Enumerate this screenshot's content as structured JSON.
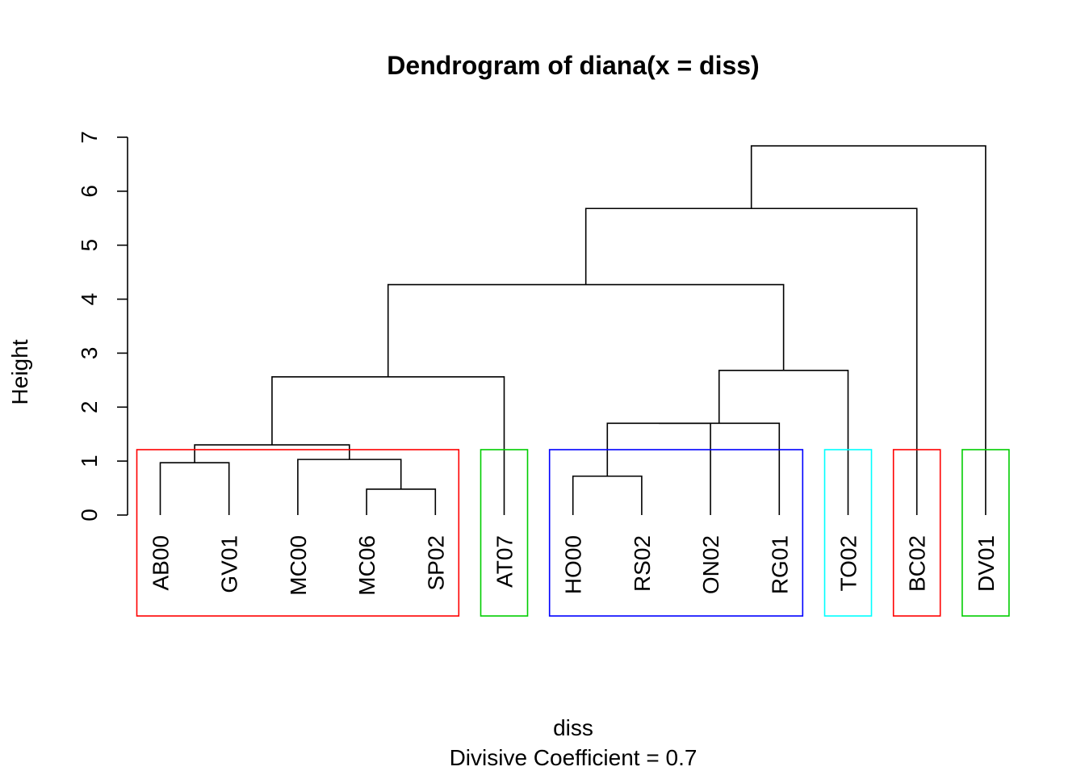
{
  "chart_data": {
    "type": "dendrogram",
    "title": "Dendrogram of  diana(x = diss)",
    "xlabel": "diss",
    "sublabel": "Divisive Coefficient =  0.7",
    "ylabel": "Height",
    "ylim": [
      0,
      7
    ],
    "yticks": [
      0,
      1,
      2,
      3,
      4,
      5,
      6,
      7
    ],
    "leaves": [
      "AB00",
      "GV01",
      "MC00",
      "MC06",
      "SP02",
      "AT07",
      "HO00",
      "RS02",
      "ON02",
      "RG01",
      "TO02",
      "BC02",
      "DV01"
    ],
    "merges": [
      {
        "id": "m1",
        "left": "MC06",
        "right": "SP02",
        "height": 0.48
      },
      {
        "id": "m2",
        "left": "HO00",
        "right": "RS02",
        "height": 0.72
      },
      {
        "id": "m3",
        "left": "AB00",
        "right": "GV01",
        "height": 0.97
      },
      {
        "id": "m4",
        "left": "MC00",
        "right": "m1",
        "height": 1.03
      },
      {
        "id": "m5",
        "left": "m3",
        "right": "m4",
        "height": 1.3
      },
      {
        "id": "m6",
        "left": "m2",
        "right": "ON02",
        "height": 1.7
      },
      {
        "id": "m7",
        "left": "m6",
        "right": "RG01",
        "height": 1.7
      },
      {
        "id": "m8",
        "left": "m5",
        "right": "AT07",
        "height": 2.56
      },
      {
        "id": "m9",
        "left": "m7",
        "right": "TO02",
        "height": 2.68
      },
      {
        "id": "m10",
        "left": "m8",
        "right": "m9",
        "height": 4.27
      },
      {
        "id": "m11",
        "left": "m10",
        "right": "BC02",
        "height": 5.68
      },
      {
        "id": "m12",
        "left": "m11",
        "right": "DV01",
        "height": 6.84
      }
    ],
    "clusters": [
      {
        "leaves": [
          "AB00",
          "GV01",
          "MC00",
          "MC06",
          "SP02"
        ],
        "color": "#ff0000"
      },
      {
        "leaves": [
          "AT07"
        ],
        "color": "#00cd00"
      },
      {
        "leaves": [
          "HO00",
          "RS02",
          "ON02",
          "RG01"
        ],
        "color": "#0000ff"
      },
      {
        "leaves": [
          "TO02"
        ],
        "color": "#00ffff"
      },
      {
        "leaves": [
          "BC02"
        ],
        "color": "#ff0000"
      },
      {
        "leaves": [
          "DV01"
        ],
        "color": "#00cd00"
      }
    ]
  }
}
